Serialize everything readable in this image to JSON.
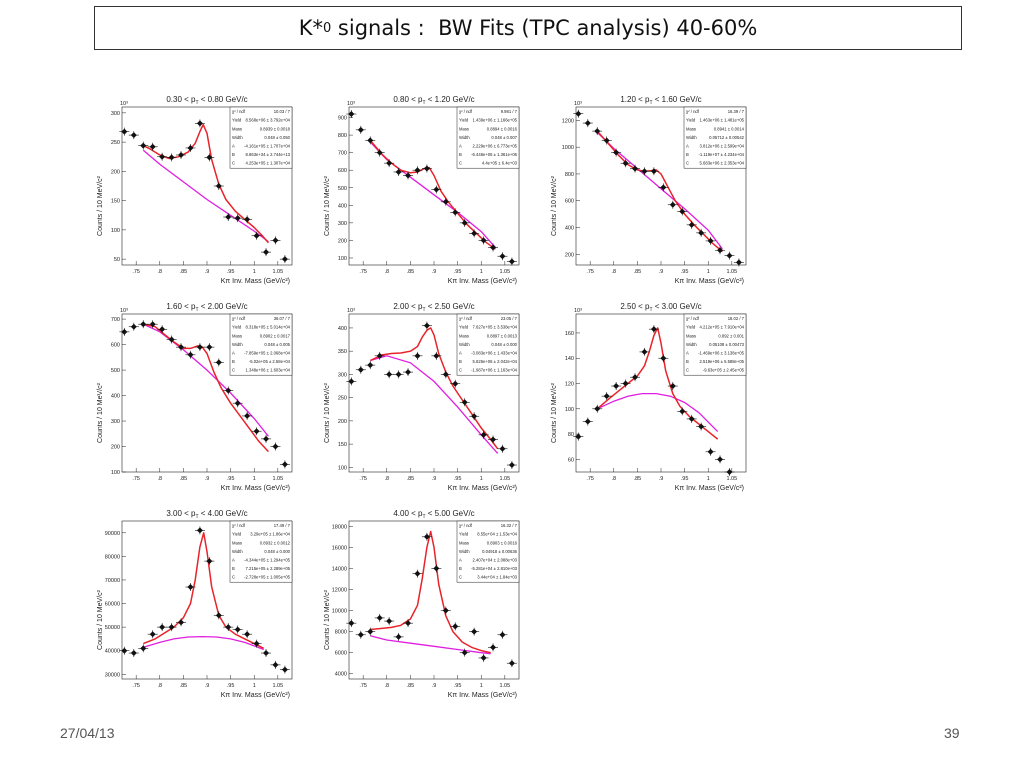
{
  "slide": {
    "title_main": "K*",
    "title_sup": "0",
    "title_rest": " signals :  BW Fits (TPC analysis) 40-60%",
    "date": "27/04/13",
    "page": "39"
  },
  "colors": {
    "fit": "#e8232a",
    "background": "#e01ee0",
    "marker": "#111111"
  },
  "chart_data": [
    {
      "type": "scatter",
      "title": "0.30 < p_T < 0.80 GeV/c",
      "xlabel": "Kπ Inv. Mass (GeV/c²)",
      "ylabel": "Counts / 10 MeV/c²",
      "multiplier": "10³",
      "xlim": [
        0.72,
        1.08
      ],
      "ylim": [
        40,
        310
      ],
      "yticks": [
        50,
        100,
        150,
        200,
        250,
        300
      ],
      "xticks": [
        0.75,
        0.8,
        0.85,
        0.9,
        0.95,
        1,
        1.05
      ],
      "stats": [
        [
          "χ² / ndf",
          "10.03 / 7"
        ],
        [
          "Yield",
          "8.568e+06 ± 3.792e+04"
        ],
        [
          "Mass",
          "0.8939 ± 0.0018"
        ],
        [
          "Width",
          "0.048 ± 0.050"
        ],
        [
          "A",
          "-4.161e+05 ± 1.707e+04"
        ],
        [
          "B",
          "8.863e+34 ± 2.744e+13"
        ],
        [
          "C",
          "4.253e+05 ± 1.307e+04"
        ]
      ],
      "x": [
        0.725,
        0.745,
        0.765,
        0.785,
        0.805,
        0.825,
        0.845,
        0.865,
        0.885,
        0.905,
        0.925,
        0.945,
        0.965,
        0.985,
        1.005,
        1.025,
        1.045,
        1.065
      ],
      "y": [
        268,
        262,
        244,
        242,
        225,
        224,
        228,
        240,
        282,
        224,
        175,
        122,
        120,
        118,
        90,
        62,
        82,
        50
      ],
      "fit_x": [
        0.765,
        0.78,
        0.8,
        0.82,
        0.84,
        0.86,
        0.875,
        0.885,
        0.892,
        0.9,
        0.91,
        0.925,
        0.94,
        0.96,
        0.98,
        1.0,
        1.015,
        1.03
      ],
      "fit_y": [
        244,
        238,
        228,
        222,
        225,
        233,
        248,
        268,
        280,
        265,
        220,
        178,
        152,
        132,
        118,
        104,
        92,
        78
      ],
      "bg_x": [
        0.765,
        0.8,
        0.85,
        0.9,
        0.95,
        1.0,
        1.03
      ],
      "bg_y": [
        236,
        212,
        182,
        152,
        125,
        98,
        80
      ]
    },
    {
      "type": "scatter",
      "title": "0.80 < p_T < 1.20 GeV/c",
      "xlabel": "Kπ Inv. Mass (GeV/c²)",
      "ylabel": "Counts / 10 MeV/c²",
      "multiplier": "10³",
      "xlim": [
        0.72,
        1.08
      ],
      "ylim": [
        60,
        960
      ],
      "yticks": [
        100,
        200,
        300,
        400,
        500,
        600,
        700,
        800,
        900
      ],
      "xticks": [
        0.75,
        0.8,
        0.85,
        0.9,
        0.95,
        1,
        1.05
      ],
      "stats": [
        [
          "χ² / ndf",
          "9.981 / 7"
        ],
        [
          "Yield",
          "1.439e+06 ± 1.166e+05"
        ],
        [
          "Mass",
          "0.8894 ± 0.0016"
        ],
        [
          "Width",
          "0.048 ± 0.007"
        ],
        [
          "A",
          "2.229e+06 ± 6.773e+05"
        ],
        [
          "B",
          "-6.446e+06 ± 1.361e+06"
        ],
        [
          "C",
          "4.4e+05 ± 6.4e+03"
        ]
      ],
      "x": [
        0.725,
        0.745,
        0.765,
        0.785,
        0.805,
        0.825,
        0.845,
        0.865,
        0.885,
        0.905,
        0.925,
        0.945,
        0.965,
        0.985,
        1.005,
        1.025,
        1.045,
        1.065
      ],
      "y": [
        920,
        830,
        770,
        700,
        640,
        590,
        570,
        600,
        610,
        490,
        420,
        360,
        300,
        240,
        200,
        160,
        110,
        80
      ],
      "fit_x": [
        0.765,
        0.79,
        0.81,
        0.83,
        0.85,
        0.865,
        0.88,
        0.89,
        0.9,
        0.915,
        0.93,
        0.95,
        0.97,
        0.99,
        1.01,
        1.03
      ],
      "fit_y": [
        770,
        690,
        640,
        600,
        585,
        590,
        610,
        615,
        570,
        480,
        420,
        355,
        290,
        240,
        190,
        150
      ],
      "bg_x": [
        0.765,
        0.8,
        0.85,
        0.9,
        0.95,
        1.0,
        1.03
      ],
      "bg_y": [
        760,
        660,
        560,
        460,
        360,
        250,
        160
      ]
    },
    {
      "type": "scatter",
      "title": "1.20 < p_T < 1.60 GeV/c",
      "xlabel": "Kπ Inv. Mass (GeV/c²)",
      "ylabel": "Counts / 10 MeV/c²",
      "multiplier": "10³",
      "xlim": [
        0.72,
        1.08
      ],
      "ylim": [
        120,
        1300
      ],
      "yticks": [
        200,
        400,
        600,
        800,
        1000,
        1200
      ],
      "xticks": [
        0.75,
        0.8,
        0.85,
        0.9,
        0.95,
        1,
        1.05
      ],
      "stats": [
        [
          "χ² / ndf",
          "16.39 / 7"
        ],
        [
          "Yield",
          "1.463e+06 ± 1.481e+05"
        ],
        [
          "Mass",
          "0.8941 ± 0.0014"
        ],
        [
          "Width",
          "0.05712 ± 0.00542"
        ],
        [
          "A",
          "3.812e+06 ± 2.599e+04"
        ],
        [
          "B",
          "-1.119e+07 ± 4.234e+04"
        ],
        [
          "C",
          "5.683e+06 ± 2.353e+04"
        ]
      ],
      "x": [
        0.725,
        0.745,
        0.765,
        0.785,
        0.805,
        0.825,
        0.845,
        0.865,
        0.885,
        0.905,
        0.925,
        0.945,
        0.965,
        0.985,
        1.005,
        1.025,
        1.045,
        1.065
      ],
      "y": [
        1250,
        1180,
        1120,
        1050,
        960,
        880,
        840,
        820,
        820,
        700,
        570,
        520,
        420,
        360,
        300,
        230,
        190,
        140
      ],
      "fit_x": [
        0.765,
        0.79,
        0.81,
        0.83,
        0.85,
        0.865,
        0.88,
        0.89,
        0.9,
        0.915,
        0.93,
        0.95,
        0.97,
        0.99,
        1.01,
        1.03
      ],
      "fit_y": [
        1120,
        1020,
        940,
        870,
        830,
        820,
        825,
        830,
        800,
        700,
        600,
        500,
        420,
        350,
        280,
        220
      ],
      "bg_x": [
        0.765,
        0.8,
        0.85,
        0.9,
        0.95,
        1.0,
        1.03
      ],
      "bg_y": [
        1110,
        990,
        840,
        690,
        540,
        380,
        240
      ]
    },
    {
      "type": "scatter",
      "title": "1.60 < p_T < 2.00 GeV/c",
      "xlabel": "Kπ Inv. Mass (GeV/c²)",
      "ylabel": "Counts / 10 MeV/c²",
      "multiplier": "10³",
      "xlim": [
        0.72,
        1.08
      ],
      "ylim": [
        100,
        720
      ],
      "yticks": [
        100,
        200,
        300,
        400,
        500,
        600,
        700
      ],
      "xticks": [
        0.75,
        0.8,
        0.85,
        0.9,
        0.95,
        1,
        1.05
      ],
      "stats": [
        [
          "χ² / ndf",
          "36.07 / 7"
        ],
        [
          "Yield",
          "8.318e+05 ± 5.014e+04"
        ],
        [
          "Mass",
          "0.8902 ± 0.0017"
        ],
        [
          "Width",
          "0.048 ± 0.005"
        ],
        [
          "A",
          "-7.859e+05 ± 2.068e+04"
        ],
        [
          "B",
          "-5.02e+05 ± 2.58e+04"
        ],
        [
          "C",
          "1.348e+06 ± 1.603e+04"
        ]
      ],
      "x": [
        0.725,
        0.745,
        0.765,
        0.785,
        0.805,
        0.825,
        0.845,
        0.865,
        0.885,
        0.905,
        0.925,
        0.945,
        0.965,
        0.985,
        1.005,
        1.025,
        1.045,
        1.065
      ],
      "y": [
        650,
        670,
        680,
        680,
        660,
        620,
        590,
        560,
        590,
        590,
        530,
        420,
        370,
        320,
        260,
        230,
        200,
        130
      ],
      "fit_x": [
        0.765,
        0.79,
        0.81,
        0.83,
        0.85,
        0.865,
        0.88,
        0.89,
        0.9,
        0.915,
        0.93,
        0.95,
        0.97,
        0.99,
        1.01,
        1.03
      ],
      "fit_y": [
        680,
        670,
        640,
        610,
        585,
        585,
        595,
        590,
        565,
        490,
        430,
        370,
        320,
        270,
        220,
        180
      ],
      "bg_x": [
        0.765,
        0.8,
        0.85,
        0.9,
        0.95,
        1.0,
        1.03
      ],
      "bg_y": [
        680,
        650,
        580,
        500,
        410,
        310,
        240
      ]
    },
    {
      "type": "scatter",
      "title": "2.00 < p_T < 2.50 GeV/c",
      "xlabel": "Kπ Inv. Mass (GeV/c²)",
      "ylabel": "Counts / 10 MeV/c²",
      "multiplier": "10³",
      "xlim": [
        0.72,
        1.08
      ],
      "ylim": [
        90,
        430
      ],
      "yticks": [
        100,
        150,
        200,
        250,
        300,
        350,
        400
      ],
      "xticks": [
        0.75,
        0.8,
        0.85,
        0.9,
        0.95,
        1,
        1.05
      ],
      "stats": [
        [
          "χ² / ndf",
          "23.05 / 7"
        ],
        [
          "Yield",
          "7.627e+05 ± 3.538e+04"
        ],
        [
          "Mass",
          "0.8897 ± 0.0013"
        ],
        [
          "Width",
          "0.048 ± 0.000"
        ],
        [
          "A",
          "-3.083e+06 ± 1.433e+04"
        ],
        [
          "B",
          "5.625e+06 ± 2.042e+04"
        ],
        [
          "C",
          "-1.987e+06 ± 1.163e+04"
        ]
      ],
      "x": [
        0.725,
        0.745,
        0.765,
        0.785,
        0.805,
        0.825,
        0.845,
        0.865,
        0.885,
        0.905,
        0.925,
        0.945,
        0.965,
        0.985,
        1.005,
        1.025,
        1.045,
        1.065
      ],
      "y": [
        285,
        310,
        320,
        340,
        300,
        300,
        305,
        340,
        405,
        340,
        300,
        280,
        240,
        210,
        170,
        160,
        140,
        105
      ],
      "fit_x": [
        0.765,
        0.79,
        0.81,
        0.83,
        0.85,
        0.865,
        0.875,
        0.885,
        0.893,
        0.9,
        0.91,
        0.925,
        0.94,
        0.96,
        0.98,
        1.0,
        1.02,
        1.035
      ],
      "fit_y": [
        330,
        342,
        345,
        346,
        350,
        360,
        380,
        395,
        400,
        385,
        345,
        305,
        275,
        245,
        215,
        185,
        160,
        140
      ],
      "bg_x": [
        0.765,
        0.8,
        0.85,
        0.9,
        0.95,
        1.0,
        1.035
      ],
      "bg_y": [
        330,
        340,
        325,
        285,
        230,
        170,
        130
      ]
    },
    {
      "type": "scatter",
      "title": "2.50 < p_T < 3.00 GeV/c",
      "xlabel": "Kπ Inv. Mass (GeV/c²)",
      "ylabel": "Counts / 10 MeV/c²",
      "multiplier": "10³",
      "xlim": [
        0.72,
        1.08
      ],
      "ylim": [
        50,
        175
      ],
      "yticks": [
        60,
        80,
        100,
        120,
        140,
        160
      ],
      "xticks": [
        0.75,
        0.8,
        0.85,
        0.9,
        0.95,
        1,
        1.05
      ],
      "stats": [
        [
          "χ² / ndf",
          "18.02 / 7"
        ],
        [
          "Yield",
          "4.212e+05 ± 7.910e+04"
        ],
        [
          "Mass",
          "0.892 ± 0.001"
        ],
        [
          "Width",
          "0.05108 ± 0.00473"
        ],
        [
          "A",
          "-1.469e+06 ± 3.138e+05"
        ],
        [
          "B",
          "2.519e+06 ± 5.588e+05"
        ],
        [
          "C",
          "-9.63e+05 ± 2.45e+05"
        ]
      ],
      "x": [
        0.725,
        0.745,
        0.765,
        0.785,
        0.805,
        0.825,
        0.845,
        0.865,
        0.885,
        0.905,
        0.925,
        0.945,
        0.965,
        0.985,
        1.005,
        1.025,
        1.045,
        1.065
      ],
      "y": [
        78,
        90,
        100,
        110,
        118,
        120,
        125,
        145,
        163,
        140,
        118,
        98,
        92,
        86,
        66,
        60,
        50,
        45
      ],
      "fit_x": [
        0.765,
        0.79,
        0.81,
        0.83,
        0.85,
        0.865,
        0.875,
        0.885,
        0.893,
        0.9,
        0.91,
        0.925,
        0.94,
        0.96,
        0.98,
        1.0,
        1.02
      ],
      "fit_y": [
        100,
        108,
        114,
        120,
        126,
        134,
        145,
        158,
        164,
        152,
        130,
        112,
        102,
        94,
        88,
        82,
        76
      ],
      "bg_x": [
        0.765,
        0.8,
        0.83,
        0.86,
        0.89,
        0.92,
        0.95,
        0.98,
        1.02
      ],
      "bg_y": [
        100,
        106,
        110,
        112,
        112,
        110,
        105,
        97,
        82
      ]
    },
    {
      "type": "scatter",
      "title": "3.00 < p_T < 4.00 GeV/c",
      "xlabel": "Kπ Inv. Mass (GeV/c²)",
      "ylabel": "Counts / 10 MeV/c²",
      "multiplier": "",
      "xlim": [
        0.72,
        1.08
      ],
      "ylim": [
        28000,
        95000
      ],
      "yticks": [
        30000,
        40000,
        50000,
        60000,
        70000,
        80000,
        90000
      ],
      "xticks": [
        0.75,
        0.8,
        0.85,
        0.9,
        0.95,
        1,
        1.05
      ],
      "stats": [
        [
          "χ² / ndf",
          "17.49 / 7"
        ],
        [
          "Yield",
          "3.29e+05 ± 1.86e+04"
        ],
        [
          "Mass",
          "0.8932 ± 0.0012"
        ],
        [
          "Width",
          "0.048 ± 0.000"
        ],
        [
          "A",
          "-4.344e+05 ± 1.294e+05"
        ],
        [
          "B",
          "7.215e+05 ± 2.289e+05"
        ],
        [
          "C",
          "-2.728e+05 ± 1.005e+05"
        ]
      ],
      "x": [
        0.725,
        0.745,
        0.765,
        0.785,
        0.805,
        0.825,
        0.845,
        0.865,
        0.885,
        0.905,
        0.925,
        0.945,
        0.965,
        0.985,
        1.005,
        1.025,
        1.045,
        1.065
      ],
      "y": [
        40000,
        39000,
        41000,
        47000,
        50000,
        50000,
        52000,
        67000,
        91000,
        78000,
        55000,
        50000,
        49000,
        47000,
        43000,
        39000,
        34000,
        32000
      ],
      "fit_x": [
        0.765,
        0.79,
        0.81,
        0.83,
        0.85,
        0.865,
        0.875,
        0.885,
        0.893,
        0.9,
        0.91,
        0.925,
        0.94,
        0.96,
        0.98,
        1.0,
        1.02
      ],
      "fit_y": [
        43000,
        45000,
        47500,
        50000,
        54000,
        60000,
        70000,
        84000,
        90000,
        82000,
        67000,
        55000,
        50000,
        47000,
        45000,
        43000,
        41000
      ],
      "bg_x": [
        0.765,
        0.8,
        0.83,
        0.86,
        0.89,
        0.92,
        0.95,
        0.98,
        1.02
      ],
      "bg_y": [
        41500,
        43500,
        45000,
        45800,
        46000,
        45800,
        45000,
        43500,
        40500
      ]
    },
    {
      "type": "scatter",
      "title": "4.00 < p_T < 5.00 GeV/c",
      "xlabel": "Kπ Inv. Mass (GeV/c²)",
      "ylabel": "Counts / 10 MeV/c²",
      "multiplier": "",
      "xlim": [
        0.72,
        1.08
      ],
      "ylim": [
        3500,
        18500
      ],
      "yticks": [
        4000,
        6000,
        8000,
        10000,
        12000,
        14000,
        16000,
        18000
      ],
      "xticks": [
        0.75,
        0.8,
        0.85,
        0.9,
        0.95,
        1,
        1.05
      ],
      "stats": [
        [
          "χ² / ndf",
          "16.32 / 7"
        ],
        [
          "Yield",
          "8.55e+04 ± 1.53e+04"
        ],
        [
          "Mass",
          "0.8903 ± 0.0016"
        ],
        [
          "Width",
          "0.04918 ± 0.00636"
        ],
        [
          "A",
          "2.407e+04 ± 2.088e+03"
        ],
        [
          "B",
          "-5.281e+04 ± 2.810e+03"
        ],
        [
          "C",
          "3.44e+04 ± 1.84e+03"
        ]
      ],
      "x": [
        0.725,
        0.745,
        0.765,
        0.785,
        0.805,
        0.825,
        0.845,
        0.865,
        0.885,
        0.905,
        0.925,
        0.945,
        0.965,
        0.985,
        1.005,
        1.025,
        1.045,
        1.065
      ],
      "y": [
        8800,
        7700,
        8000,
        9300,
        9000,
        7500,
        8800,
        13500,
        17000,
        14000,
        10000,
        8500,
        6000,
        8000,
        5500,
        6500,
        7700,
        5000
      ],
      "fit_x": [
        0.765,
        0.79,
        0.81,
        0.83,
        0.85,
        0.865,
        0.875,
        0.885,
        0.893,
        0.9,
        0.91,
        0.925,
        0.94,
        0.96,
        0.98,
        1.0,
        1.02
      ],
      "fit_y": [
        8200,
        8300,
        8400,
        8600,
        9200,
        10500,
        13000,
        16000,
        17500,
        16000,
        12500,
        9500,
        8000,
        7000,
        6500,
        6200,
        6000
      ],
      "bg_x": [
        0.765,
        0.8,
        0.85,
        0.9,
        0.95,
        1.0,
        1.02
      ],
      "bg_y": [
        7600,
        7200,
        6900,
        6600,
        6300,
        6000,
        5900
      ]
    }
  ]
}
